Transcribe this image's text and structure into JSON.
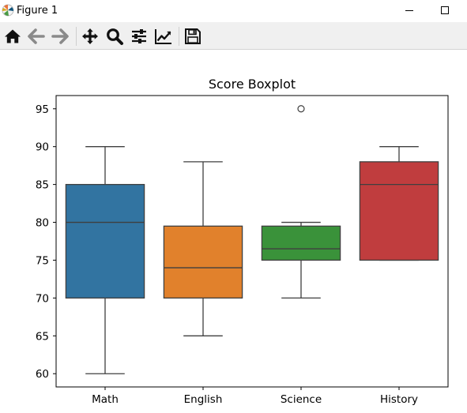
{
  "window": {
    "title": "Figure 1",
    "app_icon": "matplotlib-icon",
    "controls": [
      "minimize-icon",
      "maximize-icon"
    ]
  },
  "toolbar": {
    "tools": [
      {
        "name": "home",
        "icon": "home-icon"
      },
      {
        "name": "back",
        "icon": "back-arrow-icon"
      },
      {
        "name": "forward",
        "icon": "forward-arrow-icon"
      },
      {
        "name": "pan",
        "icon": "pan-icon"
      },
      {
        "name": "zoom",
        "icon": "zoom-icon"
      },
      {
        "name": "configure-subplots",
        "icon": "sliders-icon"
      },
      {
        "name": "edit-axis",
        "icon": "line-chart-icon"
      },
      {
        "name": "save",
        "icon": "save-icon"
      }
    ]
  },
  "chart_data": {
    "type": "boxplot",
    "title": "Score Boxplot",
    "xlabel": "",
    "ylabel": "",
    "categories": [
      "Math",
      "English",
      "Science",
      "History"
    ],
    "ylim": [
      58.25,
      96.75
    ],
    "yticks": [
      60,
      65,
      70,
      75,
      80,
      85,
      90,
      95
    ],
    "grid": false,
    "legend": "none",
    "boxes": [
      {
        "category": "Math",
        "whisker_low": 60,
        "q1": 70,
        "median": 80,
        "q3": 85,
        "whisker_high": 90,
        "outliers": [],
        "color": "#3274a1"
      },
      {
        "category": "English",
        "whisker_low": 65,
        "q1": 70,
        "median": 74,
        "q3": 79.5,
        "whisker_high": 88,
        "outliers": [],
        "color": "#e1812c"
      },
      {
        "category": "Science",
        "whisker_low": 70,
        "q1": 75,
        "median": 76.5,
        "q3": 79.5,
        "whisker_high": 80,
        "outliers": [
          95
        ],
        "color": "#3a923a"
      },
      {
        "category": "History",
        "whisker_low": 75,
        "q1": 75,
        "median": 85,
        "q3": 88,
        "whisker_high": 90,
        "outliers": [],
        "color": "#c03d3e"
      }
    ],
    "line_color": "#3f3f3f"
  }
}
